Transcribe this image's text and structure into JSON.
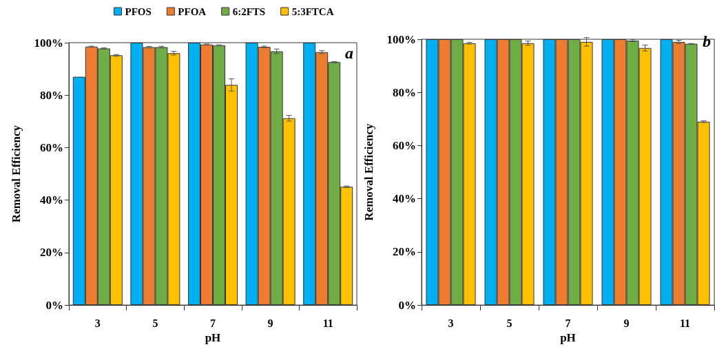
{
  "chart_data": [
    {
      "type": "bar",
      "xlabel": "pH",
      "ylabel": "Removal Efficiency",
      "categories": [
        "3",
        "5",
        "7",
        "9",
        "11"
      ],
      "series": [
        {
          "name": "PFOS",
          "color": "#00b0f0",
          "values": [
            87.0,
            100,
            100,
            100,
            100
          ]
        },
        {
          "name": "PFOA",
          "color": "#ed7d31",
          "values": [
            98.5,
            98.3,
            99.3,
            98.4,
            96.4
          ],
          "errors": [
            0.2,
            0.3,
            0.2,
            0.3,
            0.6
          ]
        },
        {
          "name": "6:2FTS",
          "color": "#70ad47",
          "values": [
            97.8,
            98.3,
            99.0,
            96.7,
            92.6
          ],
          "errors": [
            0.2,
            0.3,
            0.2,
            0.9,
            0.2
          ]
        },
        {
          "name": "5:3FTCA",
          "color": "#ffc000",
          "values": [
            95.2,
            96.0,
            83.9,
            71.2,
            45.1
          ],
          "errors": [
            0.3,
            0.7,
            2.3,
            1.1,
            0.3
          ]
        }
      ],
      "ylim": [
        0,
        100
      ],
      "yticks": [
        {
          "value": 0,
          "label": "0%"
        },
        {
          "value": 20,
          "label": "20%"
        },
        {
          "value": 40,
          "label": "40%"
        },
        {
          "value": 60,
          "label": "60%"
        },
        {
          "value": 80,
          "label": "80%"
        },
        {
          "value": 100,
          "label": "100%"
        }
      ],
      "annotations": [
        "a"
      ],
      "grid": false,
      "legend": "top"
    },
    {
      "type": "bar",
      "xlabel": "pH",
      "ylabel": "Removal Efficiency",
      "categories": [
        "3",
        "5",
        "7",
        "9",
        "11"
      ],
      "series": [
        {
          "color": "#00b0f0",
          "values": [
            100,
            100,
            100,
            100,
            100
          ]
        },
        {
          "color": "#ed7d31",
          "values": [
            100,
            100,
            100,
            100,
            99.0
          ],
          "errors": [
            null,
            null,
            null,
            null,
            0.6
          ]
        },
        {
          "color": "#70ad47",
          "values": [
            100,
            100,
            100,
            99.5,
            98.3
          ],
          "errors": [
            null,
            null,
            null,
            0.4,
            0.1
          ]
        },
        {
          "color": "#ffc000",
          "values": [
            98.5,
            98.5,
            99.0,
            96.7,
            69.0
          ],
          "errors": [
            0.3,
            0.8,
            1.6,
            1.1,
            0.3
          ]
        }
      ],
      "ylim": [
        0,
        100
      ],
      "yticks": [
        {
          "value": 0,
          "label": "0%"
        },
        {
          "value": 20,
          "label": "20%"
        },
        {
          "value": 40,
          "label": "40%"
        },
        {
          "value": 60,
          "label": "60%"
        },
        {
          "value": 80,
          "label": "80%"
        },
        {
          "value": 100,
          "label": "100%"
        }
      ],
      "annotations": [
        "b"
      ],
      "grid": false,
      "legend": false
    }
  ]
}
